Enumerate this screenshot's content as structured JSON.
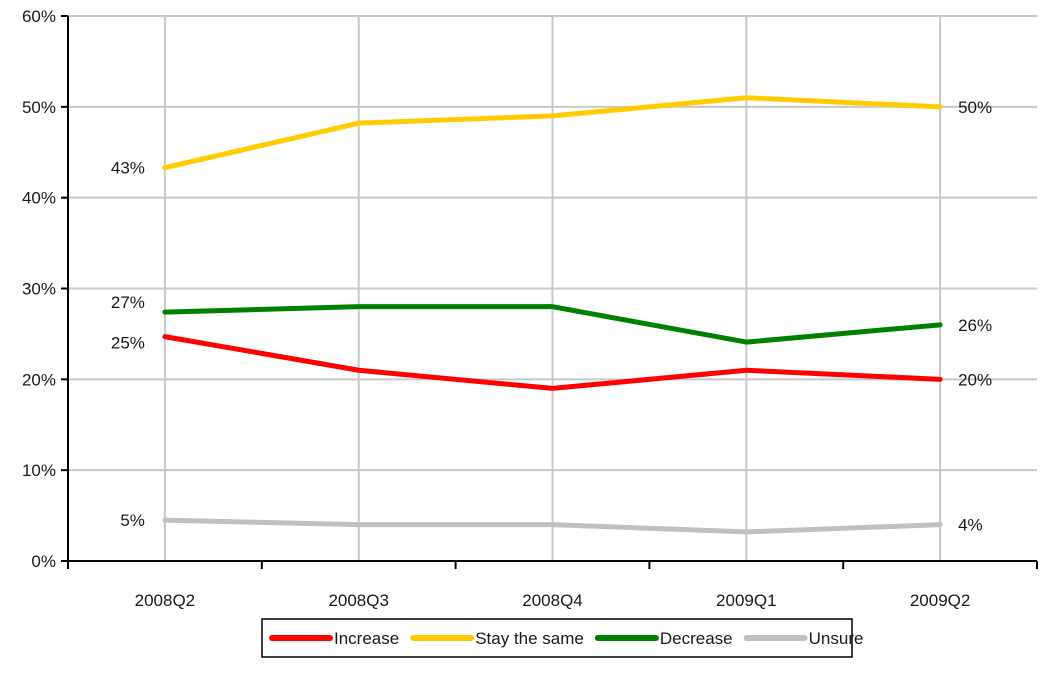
{
  "chart_data": {
    "type": "line",
    "title": "",
    "xlabel": "",
    "ylabel": "",
    "categories": [
      "2008Q2",
      "2008Q3",
      "2008Q4",
      "2009Q1",
      "2009Q2"
    ],
    "ylim": [
      0,
      60
    ],
    "y_ticks": [
      0,
      10,
      20,
      30,
      40,
      50,
      60
    ],
    "y_tick_labels": [
      "0%",
      "10%",
      "20%",
      "30%",
      "40%",
      "50%",
      "60%"
    ],
    "grid": true,
    "legend_position": "bottom",
    "series": [
      {
        "name": "Increase",
        "color": "#ff0000",
        "values": [
          24.7,
          21,
          19,
          21,
          20
        ],
        "start_label": "25%",
        "end_label": "20%"
      },
      {
        "name": "Stay the same",
        "color": "#ffcc00",
        "values": [
          43.3,
          48.2,
          49,
          51,
          50
        ],
        "start_label": "43%",
        "end_label": "50%"
      },
      {
        "name": "Decrease",
        "color": "#008000",
        "values": [
          27.4,
          28,
          28,
          24.1,
          26
        ],
        "start_label": "27%",
        "end_label": "26%"
      },
      {
        "name": "Unsure",
        "color": "#c0c0c0",
        "values": [
          4.5,
          4,
          4,
          3.2,
          4
        ],
        "start_label": "5%",
        "end_label": "4%"
      }
    ]
  }
}
